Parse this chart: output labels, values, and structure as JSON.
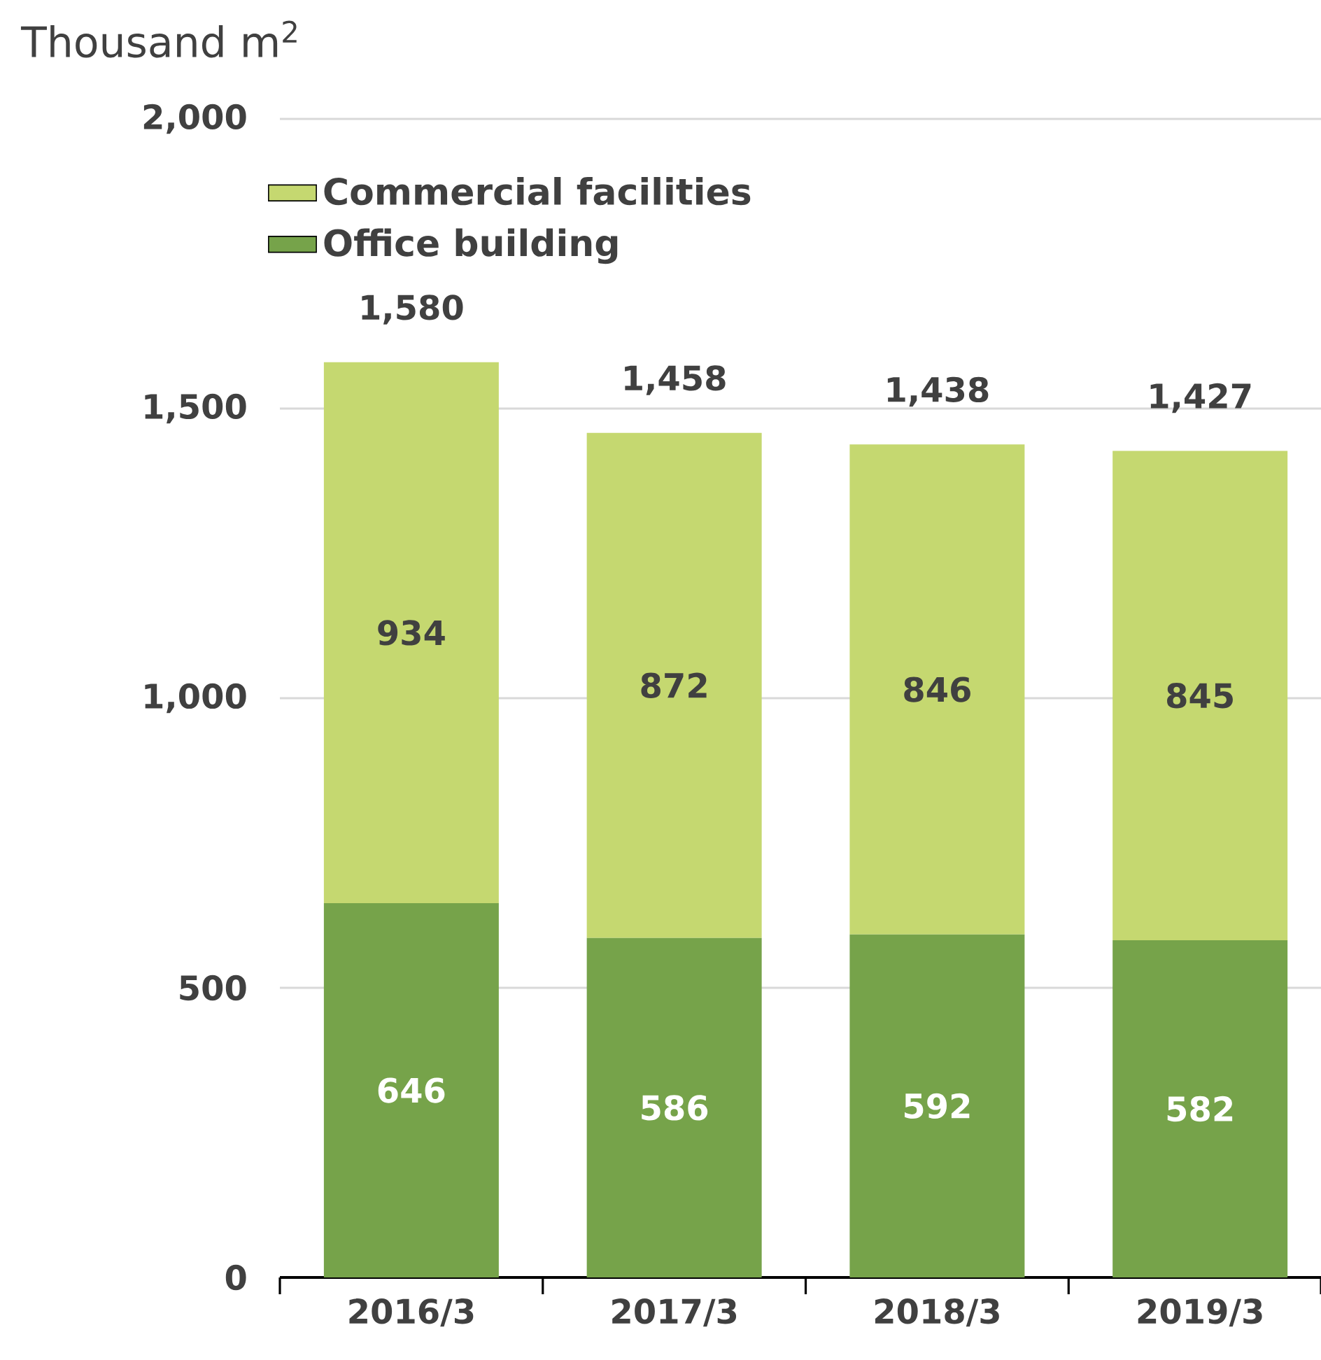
{
  "chart_data": {
    "type": "bar",
    "stacked": true,
    "ylabel": "Thousand m$^{2}$",
    "categories": [
      "2016/3",
      "2017/3",
      "2018/3",
      "2019/3"
    ],
    "series": [
      {
        "name": "Office building",
        "color": "#76a34a",
        "values": [
          646,
          586,
          592,
          582
        ]
      },
      {
        "name": "Commercial facilities",
        "color": "#c5d870",
        "values": [
          934,
          872,
          846,
          845
        ]
      }
    ],
    "totals": [
      "1,580",
      "1,458",
      "1,438",
      "1,427"
    ],
    "data_labels": true,
    "ylim": [
      0,
      2000
    ],
    "yticks": [
      0,
      500,
      {
        "value": 1000,
        "label": "1,000"
      },
      {
        "value": 1500,
        "label": "1,500"
      },
      {
        "value": 2000,
        "label": "2,000"
      }
    ],
    "grid": "y",
    "legend": "top left"
  }
}
